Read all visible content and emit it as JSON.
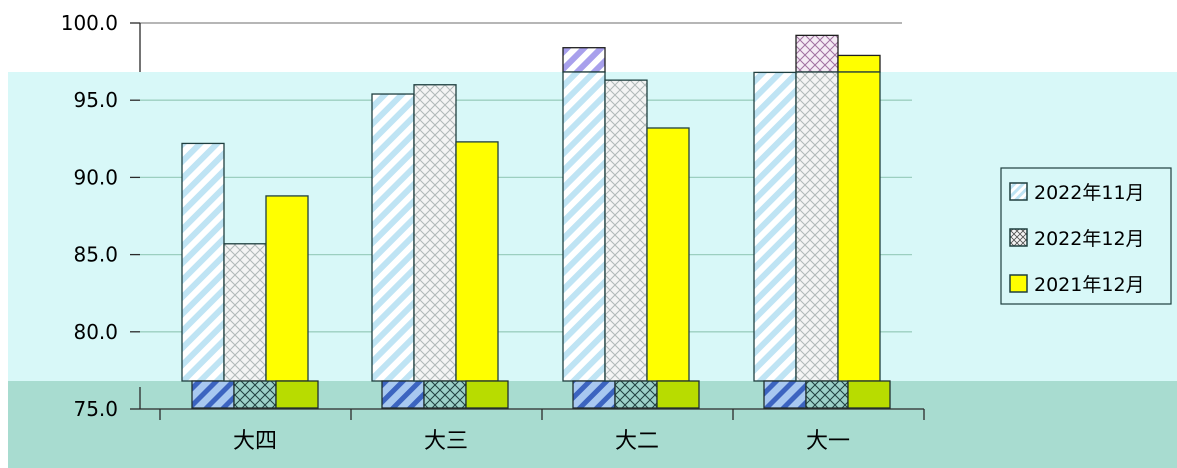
{
  "chart_data": {
    "type": "bar",
    "categories": [
      "大四",
      "大三",
      "大二",
      "大一"
    ],
    "series": [
      {
        "name": "2022年11月",
        "values": [
          92.2,
          95.4,
          98.4,
          96.8
        ],
        "pattern": "diag-light-blue"
      },
      {
        "name": "2022年12月",
        "values": [
          85.7,
          96.0,
          96.3,
          99.2
        ],
        "pattern": "crosshatch"
      },
      {
        "name": "2021年12月",
        "values": [
          88.8,
          92.3,
          93.2,
          97.9
        ],
        "pattern": "solid-yellow"
      }
    ],
    "ylim": [
      75,
      100
    ],
    "yticks": [
      "75.0",
      "80.0",
      "85.0",
      "90.0",
      "95.0",
      "100.0"
    ],
    "title": "",
    "xlabel": "",
    "ylabel": "",
    "legend_position": "right",
    "grid": true,
    "colors": {
      "plot_background": "#d8f8f8",
      "floor": "#a8dcd0",
      "gridline": "#9ccfc0",
      "series_1": "#bfe4f4",
      "series_2": "#f0f0f0",
      "series_3": "#ffff00",
      "series_1_top": "#a8a0ec",
      "series_2_top": "#c89cc8",
      "bar_border": "#1f3f3f"
    }
  }
}
